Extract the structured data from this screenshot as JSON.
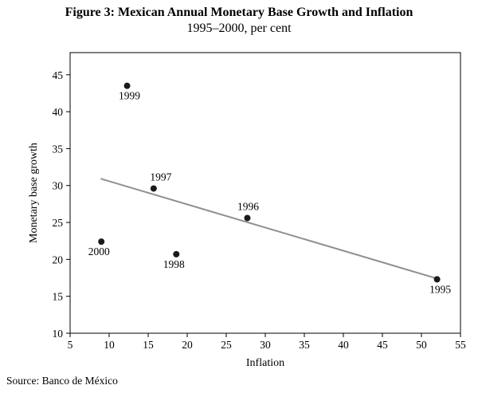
{
  "figure": {
    "title": "Figure 3: Mexican Annual Monetary Base Growth and Inflation",
    "subtitle": "1995–2000, per cent",
    "source": "Source: Banco de México"
  },
  "chart_data": {
    "type": "scatter",
    "title": "Figure 3: Mexican Annual Monetary Base Growth and Inflation",
    "subtitle": "1995–2000, per cent",
    "xlabel": "Inflation",
    "ylabel": "Monetary base growth",
    "xlim": [
      5,
      55
    ],
    "ylim": [
      10,
      48
    ],
    "xticks": [
      5,
      10,
      15,
      20,
      25,
      30,
      35,
      40,
      45,
      50,
      55
    ],
    "yticks": [
      10,
      15,
      20,
      25,
      30,
      35,
      40,
      45
    ],
    "grid": false,
    "legend": "none",
    "point_color": "#1a1a1a",
    "points": [
      {
        "label": "1999",
        "x": 12.3,
        "y": 43.5,
        "label_side": "below",
        "label_dx": 3
      },
      {
        "label": "1997",
        "x": 15.7,
        "y": 29.6,
        "label_side": "above",
        "label_dx": 9
      },
      {
        "label": "1996",
        "x": 27.7,
        "y": 25.6,
        "label_side": "above",
        "label_dx": 1
      },
      {
        "label": "2000",
        "x": 9.0,
        "y": 22.4,
        "label_side": "below",
        "label_dx": -3
      },
      {
        "label": "1998",
        "x": 18.6,
        "y": 20.7,
        "label_side": "below",
        "label_dx": -3
      },
      {
        "label": "1995",
        "x": 52.0,
        "y": 17.3,
        "label_side": "below",
        "label_dx": 4
      }
    ],
    "trend_line": {
      "x1": 9.0,
      "y1": 30.9,
      "x2": 52.0,
      "y2": 17.4,
      "color": "#8f8f8f",
      "width": 2
    }
  }
}
